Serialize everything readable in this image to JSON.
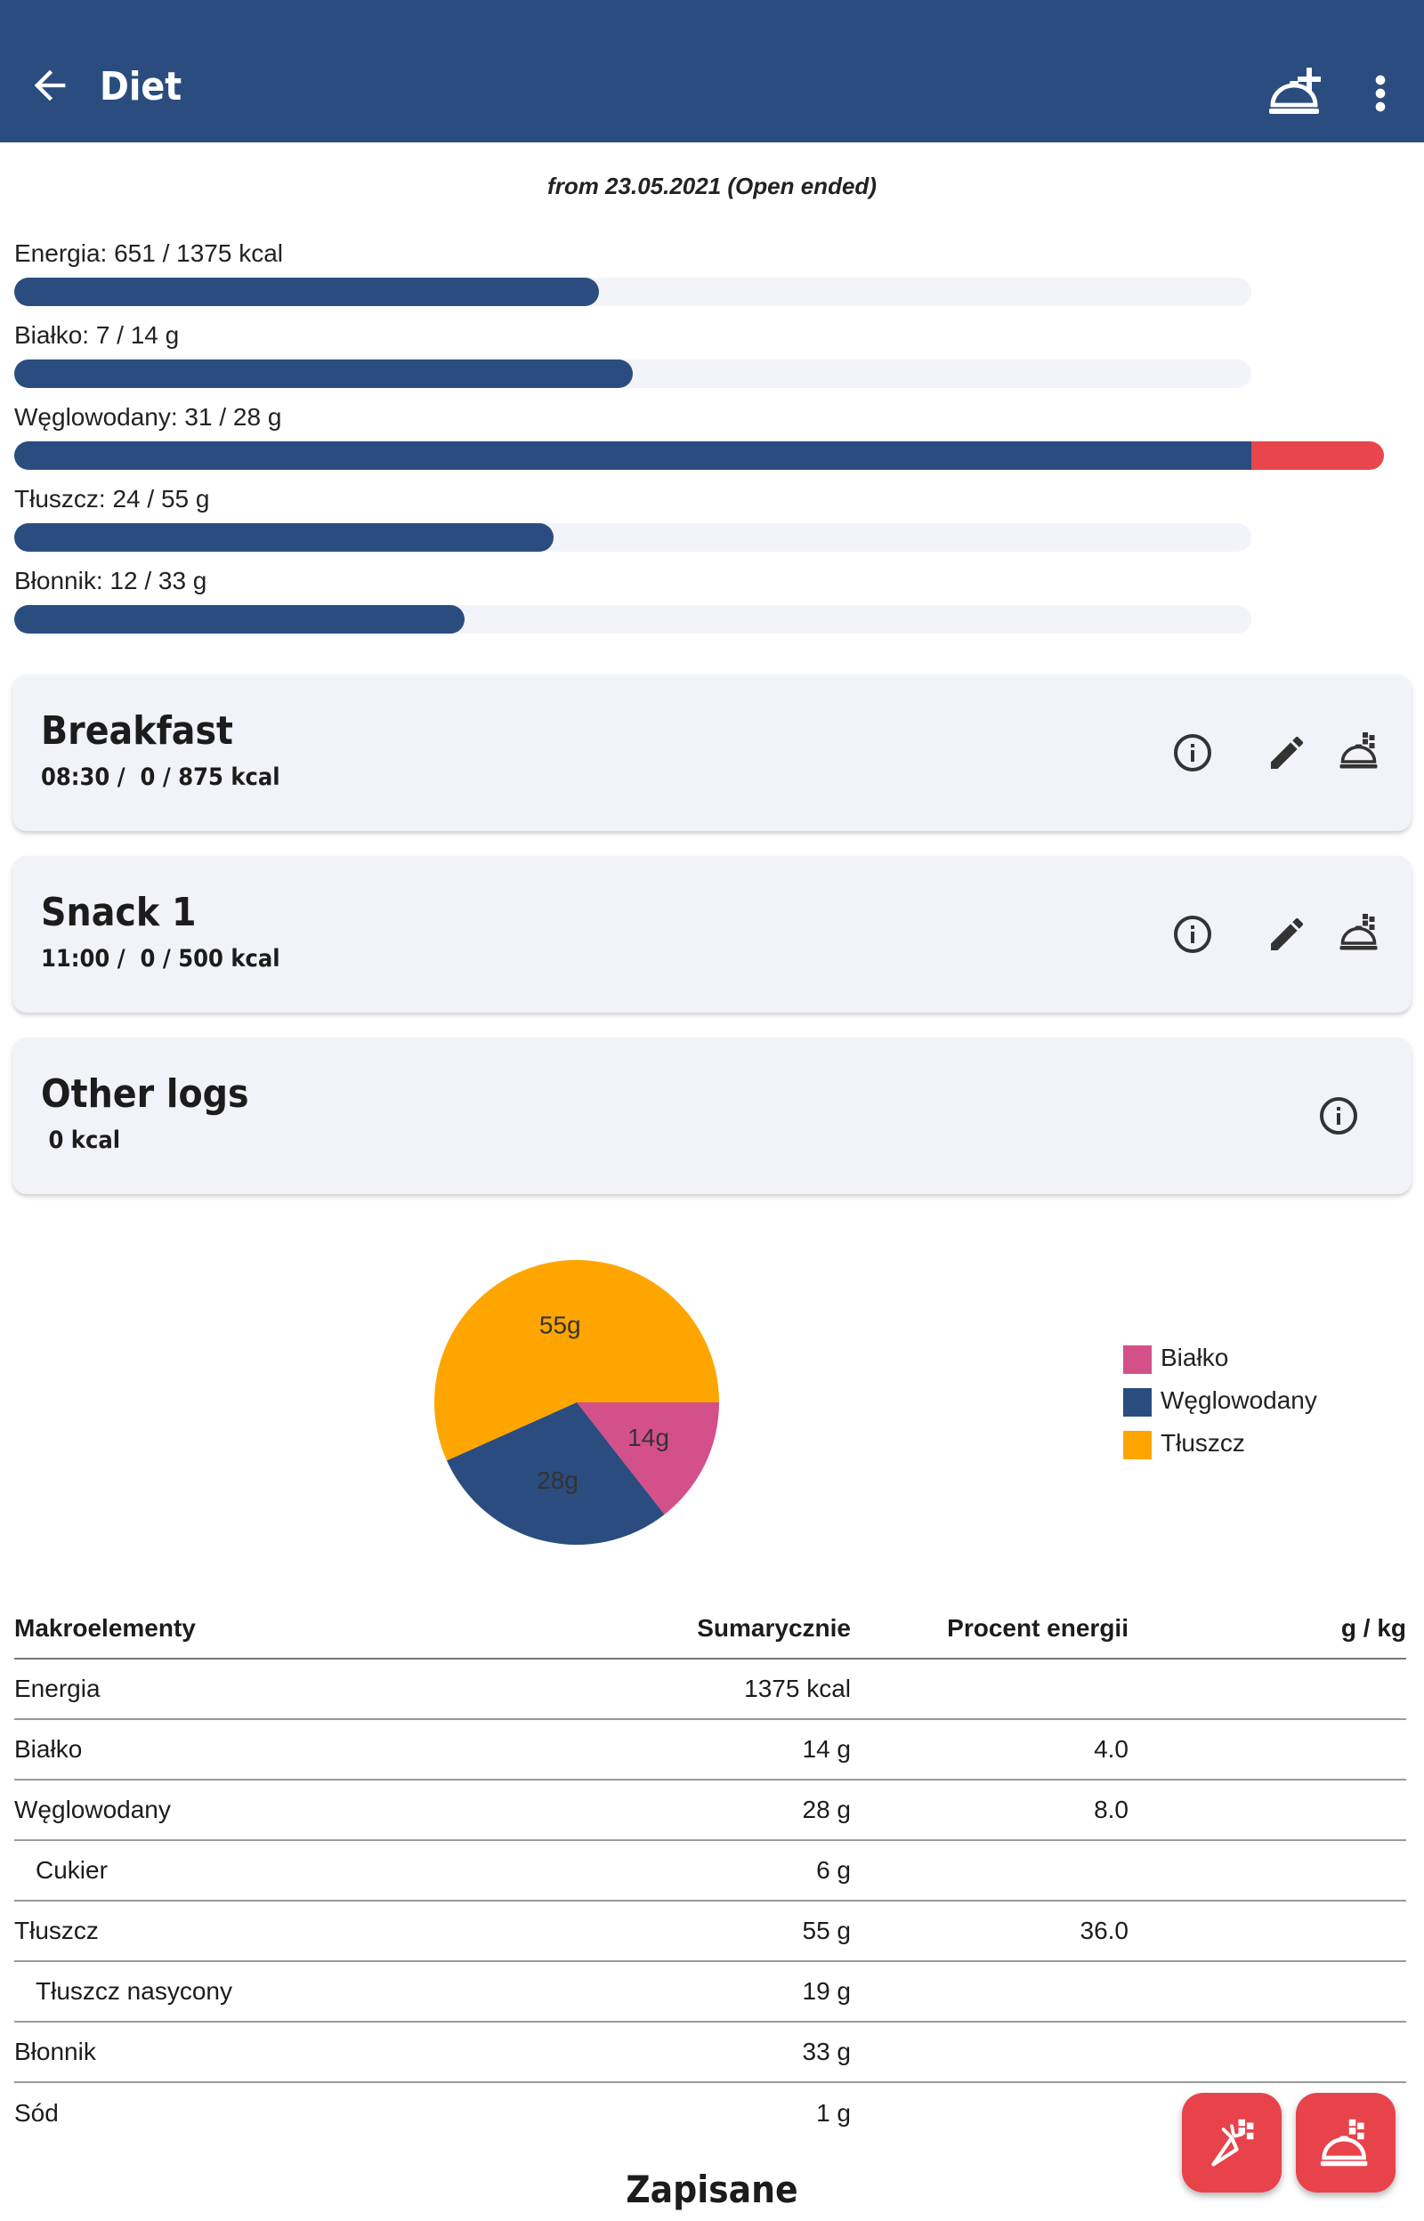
{
  "appbar": {
    "title": "Diet",
    "back_icon": "arrow-back-icon",
    "add_icon": "add-meal-icon",
    "menu_icon": "more-vert-icon"
  },
  "period": "from 23.05.2021 (Open ended)",
  "progress": [
    {
      "label": "Energia: 651 / 1375 kcal",
      "fraction": 0.473,
      "over": 0
    },
    {
      "label": "Białko: 7 / 14 g",
      "fraction": 0.5,
      "over": 0
    },
    {
      "label": "Węglowodany: 31 / 28 g",
      "fraction": 1.0,
      "over": 0.107
    },
    {
      "label": "Tłuszcz: 24 / 55 g",
      "fraction": 0.436,
      "over": 0
    },
    {
      "label": "Błonnik: 12 / 33 g",
      "fraction": 0.364,
      "over": 0
    }
  ],
  "meals": [
    {
      "name": "Breakfast",
      "sub": "08:30 /  0 / 875 kcal"
    },
    {
      "name": "Snack 1",
      "sub": "11:00 /  0 / 500 kcal"
    },
    {
      "name": "Other logs",
      "sub": " 0 kcal"
    }
  ],
  "chart_data": {
    "type": "pie",
    "labels": [
      "Białko",
      "Węglowodany",
      "Tłuszcz"
    ],
    "values": [
      14,
      28,
      55
    ],
    "slice_labels": [
      "14g",
      "28g",
      "55g"
    ],
    "colors": [
      "#d4508a",
      "#2b4c7e",
      "#ffa500"
    ],
    "legend_position": "right"
  },
  "table": {
    "headers": [
      "Makroelementy",
      "Sumarycznie",
      "Procent energii",
      "g / kg"
    ],
    "rows": [
      {
        "name": "Energia",
        "total": "1375 kcal",
        "percent": "",
        "gkg": "",
        "indent": false
      },
      {
        "name": "Białko",
        "total": "14 g",
        "percent": "4.0",
        "gkg": "",
        "indent": false
      },
      {
        "name": "Węglowodany",
        "total": "28 g",
        "percent": "8.0",
        "gkg": "",
        "indent": false
      },
      {
        "name": "Cukier",
        "total": "6 g",
        "percent": "",
        "gkg": "",
        "indent": true
      },
      {
        "name": "Tłuszcz",
        "total": "55 g",
        "percent": "36.0",
        "gkg": "",
        "indent": false
      },
      {
        "name": "Tłuszcz nasycony",
        "total": "19 g",
        "percent": "",
        "gkg": "",
        "indent": true
      },
      {
        "name": "Błonnik",
        "total": "33 g",
        "percent": "",
        "gkg": "",
        "indent": false
      },
      {
        "name": "Sód",
        "total": "1 g",
        "percent": "",
        "gkg": "",
        "indent": false
      }
    ]
  },
  "saved_heading": "Zapisane",
  "fabs": [
    {
      "icon": "log-ingredient-icon"
    },
    {
      "icon": "log-meal-icon"
    }
  ]
}
